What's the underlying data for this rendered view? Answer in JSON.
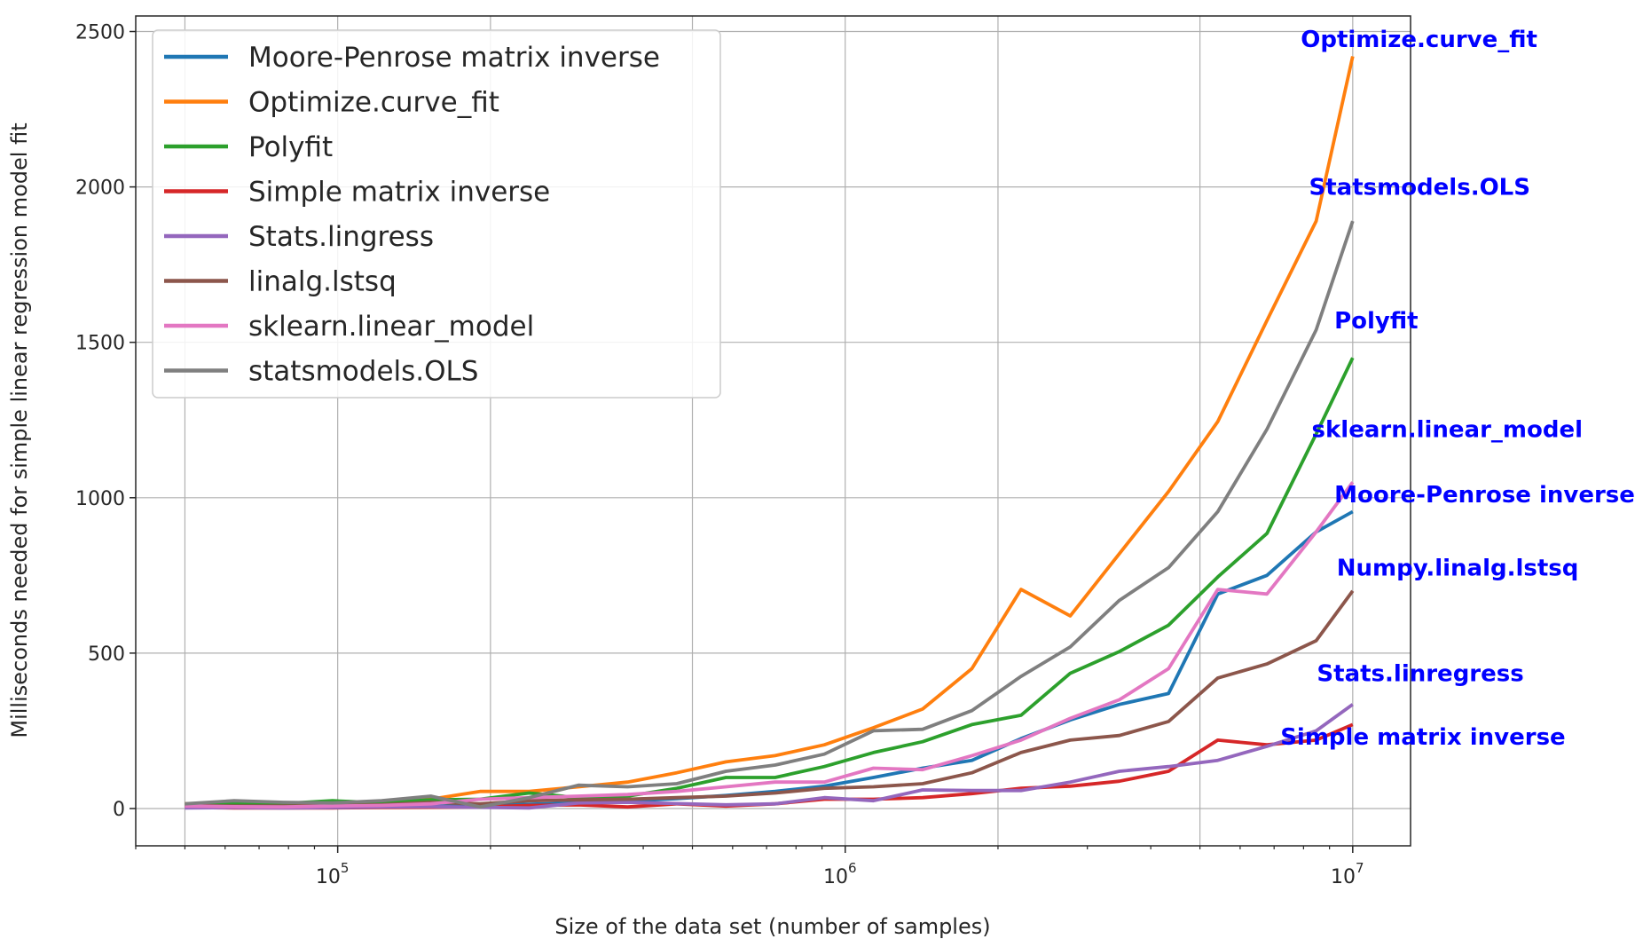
{
  "chart_data": {
    "type": "line",
    "xlabel": "Size of the data set (number of samples)",
    "ylabel": "Milliseconds needed for simple linear regression model fit",
    "xscale": "log",
    "xlim": [
      40000,
      13000000
    ],
    "ylim": [
      -120,
      2550
    ],
    "yticks": [
      0,
      500,
      1000,
      1500,
      2000,
      2500
    ],
    "xticks": [
      {
        "value": 100000,
        "base": "10",
        "exp": "5"
      },
      {
        "value": 1000000,
        "base": "10",
        "exp": "6"
      },
      {
        "value": 10000000,
        "base": "10",
        "exp": "7"
      }
    ],
    "grid": true,
    "legend_position": "top-left",
    "x": [
      50000,
      62500,
      78125,
      97656,
      122070,
      152588,
      190735,
      238419,
      298023,
      372529,
      465661,
      582076,
      727596,
      909495,
      1136868,
      1421085,
      1776357,
      2220446,
      2775558,
      3469447,
      4336809,
      5421011,
      6776264,
      8470329,
      10000000
    ],
    "series": [
      {
        "name": "Moore-Penrose matrix inverse",
        "color": "#1f77b4",
        "values": [
          5,
          4,
          3,
          4,
          5,
          7,
          10,
          14,
          18,
          24,
          32,
          42,
          55,
          72,
          100,
          130,
          155,
          225,
          285,
          335,
          370,
          690,
          750,
          890,
          955
        ]
      },
      {
        "name": "Optimize.curve_fit",
        "color": "#ff7f0e",
        "values": [
          15,
          18,
          16,
          20,
          22,
          30,
          55,
          55,
          70,
          85,
          115,
          150,
          170,
          205,
          260,
          320,
          450,
          705,
          620,
          820,
          1020,
          1245,
          1570,
          1890,
          2420
        ]
      },
      {
        "name": "Polyfit",
        "color": "#2ca02c",
        "values": [
          12,
          15,
          16,
          25,
          18,
          28,
          30,
          50,
          35,
          40,
          65,
          100,
          100,
          135,
          180,
          215,
          270,
          300,
          435,
          505,
          590,
          745,
          885,
          1205,
          1450
        ]
      },
      {
        "name": "Simple matrix inverse",
        "color": "#d62728",
        "values": [
          3,
          2,
          2,
          2,
          3,
          4,
          5,
          10,
          12,
          5,
          15,
          8,
          15,
          30,
          30,
          35,
          48,
          65,
          72,
          88,
          120,
          220,
          205,
          220,
          270
        ]
      },
      {
        "name": "Stats.lingress",
        "color": "#9467bd",
        "values": [
          2,
          3,
          2,
          3,
          5,
          6,
          4,
          2,
          18,
          20,
          16,
          12,
          15,
          35,
          25,
          60,
          58,
          58,
          85,
          120,
          135,
          155,
          200,
          250,
          335
        ]
      },
      {
        "name": "linalg.lstsq",
        "color": "#8c564b",
        "values": [
          10,
          8,
          8,
          9,
          12,
          20,
          15,
          25,
          28,
          30,
          35,
          40,
          50,
          65,
          70,
          80,
          115,
          180,
          220,
          235,
          280,
          420,
          465,
          540,
          700
        ]
      },
      {
        "name": "sklearn.linear_model",
        "color": "#e377c2",
        "values": [
          8,
          6,
          5,
          8,
          10,
          15,
          30,
          35,
          40,
          45,
          55,
          70,
          85,
          85,
          130,
          125,
          170,
          220,
          290,
          350,
          450,
          705,
          690,
          890,
          1050
        ]
      },
      {
        "name": "statsmodels.OLS",
        "color": "#7f7f7f",
        "values": [
          15,
          25,
          20,
          18,
          25,
          40,
          5,
          35,
          75,
          70,
          80,
          120,
          140,
          175,
          250,
          255,
          315,
          425,
          520,
          670,
          775,
          955,
          1220,
          1540,
          1890
        ]
      }
    ],
    "annotations": [
      {
        "text": "Optimize.curve_fit",
        "x": 7900000,
        "y": 2450
      },
      {
        "text": "Statsmodels.OLS",
        "x": 8200000,
        "y": 1975
      },
      {
        "text": "Polyfit",
        "x": 9200000,
        "y": 1545
      },
      {
        "text": "sklearn.linear_model",
        "x": 8300000,
        "y": 1195
      },
      {
        "text": "Moore-Penrose inverse",
        "x": 9200000,
        "y": 985
      },
      {
        "text": "Numpy.linalg.lstsq",
        "x": 9300000,
        "y": 750
      },
      {
        "text": "Stats.linregress",
        "x": 8500000,
        "y": 410
      },
      {
        "text": "Simple matrix inverse",
        "x": 7200000,
        "y": 205
      }
    ]
  }
}
